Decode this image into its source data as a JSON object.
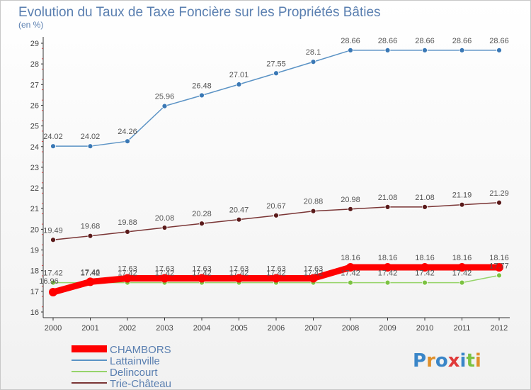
{
  "chart_data": {
    "type": "line",
    "title": "Evolution du Taux de Taxe Foncière sur les Propriétés Bâties",
    "subtitle": "(en %)",
    "x": [
      "2000",
      "2001",
      "2002",
      "2003",
      "2004",
      "2005",
      "2006",
      "2007",
      "2008",
      "2009",
      "2010",
      "2011",
      "2012"
    ],
    "ylim": [
      16,
      29
    ],
    "yticks": [
      16,
      17,
      18,
      19,
      20,
      21,
      22,
      23,
      24,
      25,
      26,
      27,
      28,
      29
    ],
    "grid": false,
    "legend_placement": "bottom-left",
    "series": [
      {
        "name": "Lattainville",
        "color": "#5b93c5",
        "dot": "#3a78b5",
        "values": [
          24.02,
          24.02,
          24.26,
          25.96,
          26.48,
          27.01,
          27.55,
          28.1,
          28.66,
          28.66,
          28.66,
          28.66,
          28.66
        ],
        "labels": [
          "24.02",
          "24.02",
          "24.26",
          "25.96",
          "26.48",
          "27.01",
          "27.55",
          "28.1",
          "28.66",
          "28.66",
          "28.66",
          "28.66",
          "28.66"
        ]
      },
      {
        "name": "Trie-Château",
        "color": "#7a3535",
        "dot": "#5a1a1a",
        "values": [
          19.49,
          19.68,
          19.88,
          20.08,
          20.28,
          20.47,
          20.67,
          20.88,
          20.98,
          21.08,
          21.08,
          21.19,
          21.29
        ],
        "labels": [
          "19.49",
          "19.68",
          "19.88",
          "20.08",
          "20.28",
          "20.47",
          "20.67",
          "20.88",
          "20.98",
          "21.08",
          "21.08",
          "21.19",
          "21.29"
        ]
      },
      {
        "name": "Delincourt",
        "color": "#96d46a",
        "dot": "#7cc242",
        "values": [
          17.42,
          17.42,
          17.42,
          17.42,
          17.42,
          17.42,
          17.42,
          17.42,
          17.42,
          17.42,
          17.42,
          17.42,
          17.77
        ],
        "labels": [
          "17.42",
          "17.42",
          "17.42",
          "17.42",
          "17.42",
          "17.42",
          "17.42",
          "17.42",
          "17.42",
          "17.42",
          "17.42",
          "17.42",
          "17.77"
        ]
      },
      {
        "name": "CHAMBORS",
        "color": "#ff0000",
        "dot": "#ff0000",
        "highlight": true,
        "values": [
          16.96,
          17.46,
          17.63,
          17.63,
          17.63,
          17.63,
          17.63,
          17.63,
          18.16,
          18.16,
          18.16,
          18.16,
          18.16
        ],
        "labels": [
          "16.96",
          "17.46",
          "17.63",
          "17.63",
          "17.63",
          "17.63",
          "17.63",
          "17.63",
          "18.16",
          "18.16",
          "18.16",
          "18.16",
          "18.16"
        ]
      }
    ],
    "legend_order": [
      "CHAMBORS",
      "Lattainville",
      "Delincourt",
      "Trie-Château"
    ],
    "legend_text_color": "#5a7fb0"
  },
  "logo": {
    "text": "Proxiti"
  }
}
